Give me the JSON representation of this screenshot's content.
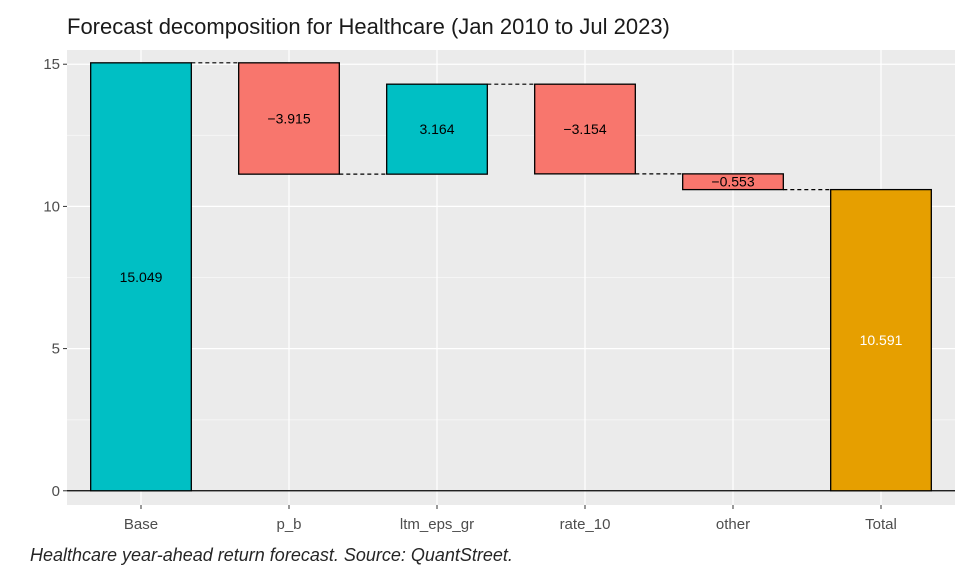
{
  "chart_data": {
    "type": "waterfall",
    "title": "Forecast decomposition for Healthcare (Jan 2010 to Jul 2023)",
    "xlabel": "",
    "ylabel": "",
    "categories": [
      "Base",
      "p_b",
      "ltm_eps_gr",
      "rate_10",
      "other",
      "Total"
    ],
    "values": [
      15.049,
      -3.915,
      3.164,
      -3.154,
      -0.553,
      10.591
    ],
    "data_labels": [
      "15.049",
      "−3.915",
      "3.164",
      "−3.154",
      "−0.553",
      "10.591"
    ],
    "ylim": [
      -0.5,
      15.5
    ],
    "yticks": [
      0,
      5,
      10,
      15
    ],
    "grid": true,
    "colors": {
      "positive": "#00BFC4",
      "negative": "#F8766D",
      "total": "#E69F00",
      "panel": "#EBEBEB",
      "grid_major": "#FFFFFF",
      "grid_minor": "#F5F5F5"
    }
  },
  "caption": "Healthcare year-ahead return forecast. Source: QuantStreet."
}
